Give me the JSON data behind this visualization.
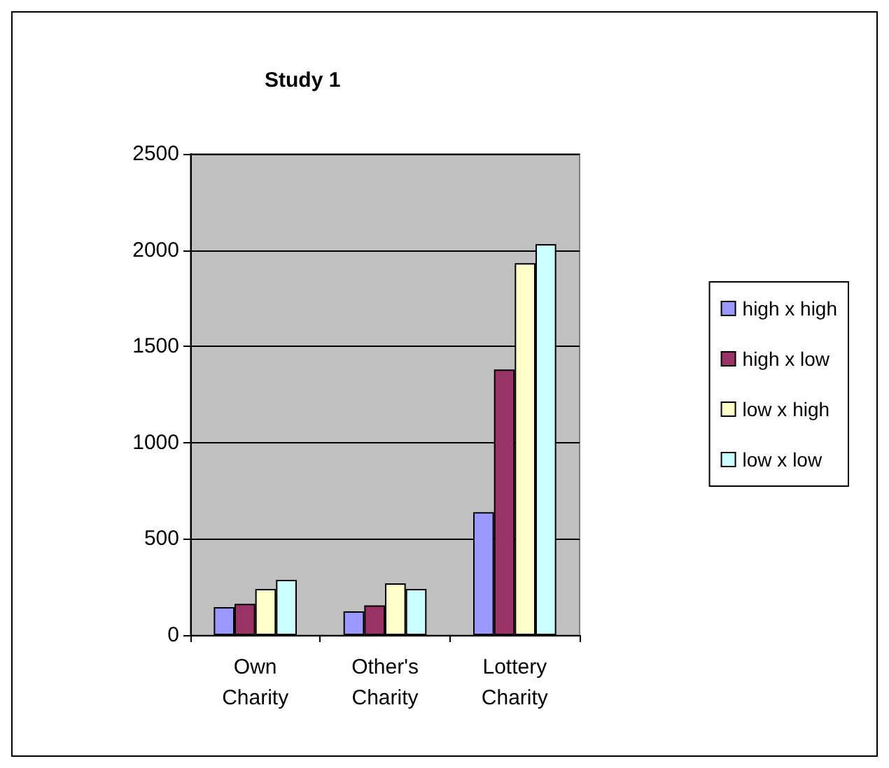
{
  "chart_data": {
    "type": "bar",
    "title": "Study 1",
    "categories": [
      "Own\nCharity",
      "Other's\nCharity",
      "Lottery\nCharity"
    ],
    "series": [
      {
        "name": "high x high",
        "color": "#9999ff",
        "values": [
          145,
          124,
          639
        ]
      },
      {
        "name": "high x low",
        "color": "#993366",
        "values": [
          163,
          154,
          1380
        ]
      },
      {
        "name": "low x high",
        "color": "#ffffcc",
        "values": [
          240,
          269,
          1932
        ]
      },
      {
        "name": "low x low",
        "color": "#ccffff",
        "values": [
          287,
          240,
          2031
        ]
      }
    ],
    "ylim": [
      0,
      2500
    ],
    "yticks": [
      0,
      500,
      1000,
      1500,
      2000,
      2500
    ],
    "grid": "y",
    "legend": "right"
  }
}
